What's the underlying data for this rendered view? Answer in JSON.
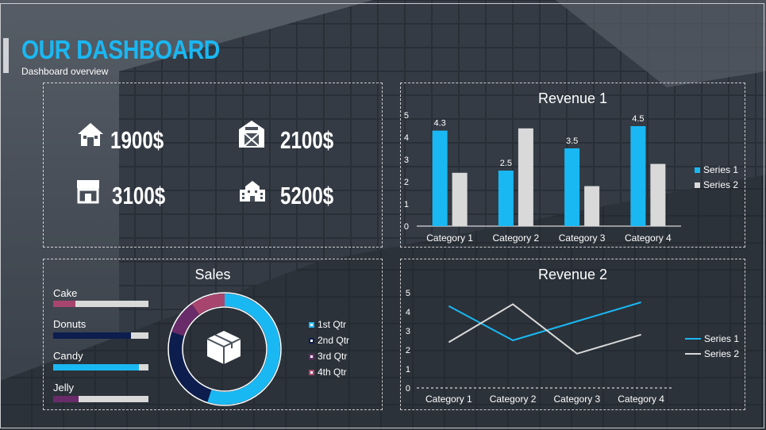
{
  "header": {
    "title": "OUR DASHBOARD",
    "subtitle": "Dashboard overview"
  },
  "kpis": [
    {
      "icon": "house-icon",
      "value": "1900$"
    },
    {
      "icon": "barn-icon",
      "value": "2100$"
    },
    {
      "icon": "storefront-icon",
      "value": "3100$"
    },
    {
      "icon": "school-building-icon",
      "value": "5200$"
    }
  ],
  "sales": {
    "title": "Sales",
    "center_icon": "box-icon",
    "bars": [
      {
        "label": "Cake",
        "value": 0.23,
        "color": "#a8456e"
      },
      {
        "label": "Donuts",
        "value": 0.82,
        "color": "#0d1d4e"
      },
      {
        "label": "Candy",
        "value": 0.9,
        "color": "#1ab8f3"
      },
      {
        "label": "Jelly",
        "value": 0.27,
        "color": "#6a2b6a"
      }
    ],
    "donut": {
      "legend": [
        "1st Qtr",
        "2nd Qtr",
        "3rd Qtr",
        "4th Qtr"
      ],
      "values": [
        55,
        25,
        10,
        10
      ],
      "colors": [
        "#1ab8f3",
        "#0d1d4e",
        "#6a2b6a",
        "#a8456e"
      ]
    }
  },
  "chart_data": [
    {
      "type": "bar",
      "title": "Revenue 1",
      "categories": [
        "Category 1",
        "Category 2",
        "Category 3",
        "Category 4"
      ],
      "series": [
        {
          "name": "Series 1",
          "values": [
            4.3,
            2.5,
            3.5,
            4.5
          ],
          "color": "#1ab8f3"
        },
        {
          "name": "Series 2",
          "values": [
            2.4,
            4.4,
            1.8,
            2.8
          ],
          "color": "#d9d9d9"
        }
      ],
      "data_labels": [
        "4.3",
        "2.5",
        "3.5",
        "4.5"
      ],
      "ylim": [
        0,
        5
      ],
      "yticks": [
        "0",
        "1",
        "2",
        "3",
        "4",
        "5"
      ],
      "legend": "right"
    },
    {
      "type": "line",
      "title": "Revenue 2",
      "categories": [
        "Category 1",
        "Category 2",
        "Category 3",
        "Category 4"
      ],
      "series": [
        {
          "name": "Series 1",
          "values": [
            4.3,
            2.5,
            3.5,
            4.5
          ],
          "color": "#1ab8f3"
        },
        {
          "name": "Series 2",
          "values": [
            2.4,
            4.4,
            1.8,
            2.8
          ],
          "color": "#d9d9d9"
        }
      ],
      "ylim": [
        0,
        5
      ],
      "yticks": [
        "0",
        "1",
        "2",
        "3",
        "4",
        "5"
      ],
      "legend": "right"
    }
  ]
}
